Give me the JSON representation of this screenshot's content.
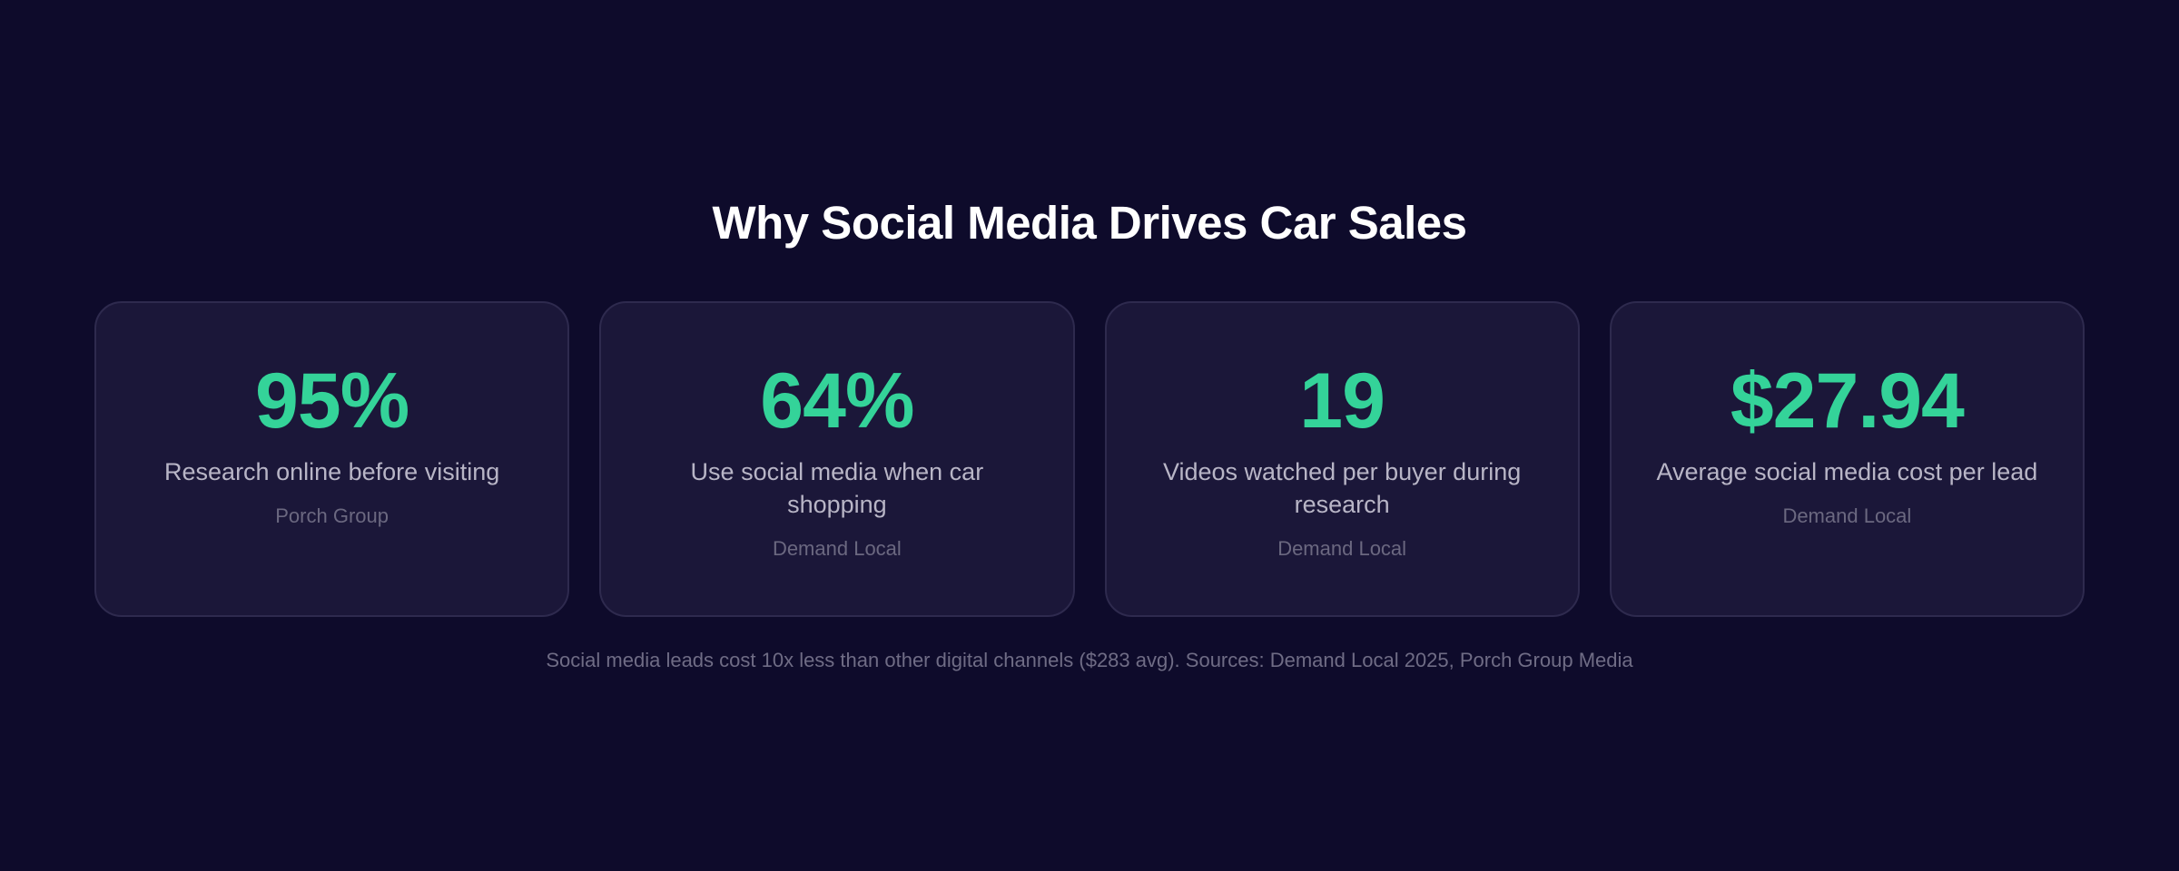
{
  "title": "Why Social Media Drives Car Sales",
  "stats": [
    {
      "value": "95%",
      "label": "Research online before visiting",
      "source": "Porch Group"
    },
    {
      "value": "64%",
      "label": "Use social media when car shopping",
      "source": "Demand Local"
    },
    {
      "value": "19",
      "label": "Videos watched per buyer during research",
      "source": "Demand Local"
    },
    {
      "value": "$27.94",
      "label": "Average social media cost per lead",
      "source": "Demand Local"
    }
  ],
  "footnote": "Social media leads cost 10x less than other digital channels ($283 avg). Sources: Demand Local 2025, Porch Group Media",
  "colors": {
    "background": "#0e0b2b",
    "card_background": "#1b1739",
    "card_border": "#2e2a4e",
    "accent": "#34d399",
    "title": "#ffffff",
    "label": "#b8b5c6",
    "source": "#6b6880"
  }
}
